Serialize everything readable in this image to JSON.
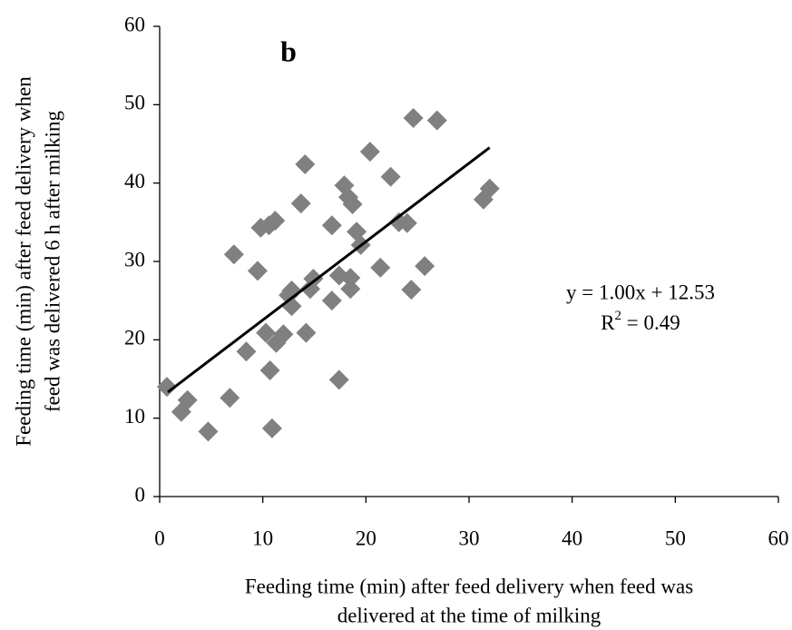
{
  "chart_data": {
    "type": "scatter",
    "title": "b",
    "x_label": [
      "Feeding time (min) after feed delivery when feed was",
      "delivered at the time of milking"
    ],
    "y_label": [
      "Feeding time (min) after feed delivery when",
      "feed was delivered 6 h after milking"
    ],
    "x": [
      0.7,
      2.1,
      2.7,
      4.7,
      6.8,
      7.2,
      8.4,
      9.5,
      9.8,
      10.6,
      11.2,
      10.7,
      10.9,
      10.3,
      11.3,
      12,
      12.5,
      12.8,
      12.8,
      13.7,
      14.1,
      14.2,
      14.6,
      14.9,
      16.7,
      16.7,
      17.4,
      17.4,
      17.9,
      18.3,
      18.5,
      18.7,
      18.5,
      19.1,
      19.5,
      20.4,
      21.4,
      22.4,
      23.2,
      24,
      24.4,
      24.6,
      25.7,
      26.9,
      31.4,
      32
    ],
    "y": [
      14,
      10.8,
      12.3,
      8.3,
      12.6,
      30.9,
      18.5,
      28.8,
      34.3,
      34.6,
      35.2,
      16.1,
      8.7,
      20.9,
      19.6,
      20.7,
      25.7,
      26.3,
      24.3,
      37.4,
      42.4,
      20.9,
      26.5,
      27.8,
      34.6,
      25,
      14.9,
      28.2,
      39.7,
      38.2,
      26.5,
      37.3,
      27.9,
      33.8,
      32.1,
      44,
      29.2,
      40.8,
      35,
      34.9,
      26.4,
      48.3,
      29.4,
      48,
      37.9,
      39.3
    ],
    "color": "#808080",
    "trendline": {
      "slope": 1.0,
      "intercept": 12.53,
      "x": [
        0.8,
        32
      ],
      "color": "#000000"
    },
    "equation": "y = 1.00x + 12.53",
    "r_squared": {
      "base": "R",
      "sup": "2",
      "rest": " = 0.49"
    },
    "xlim": [
      0,
      60
    ],
    "xticks": [
      0,
      10,
      20,
      30,
      40,
      50,
      60
    ],
    "ylim": [
      0,
      60
    ],
    "yticks": [
      0,
      10,
      20,
      30,
      40,
      50,
      60
    ]
  }
}
